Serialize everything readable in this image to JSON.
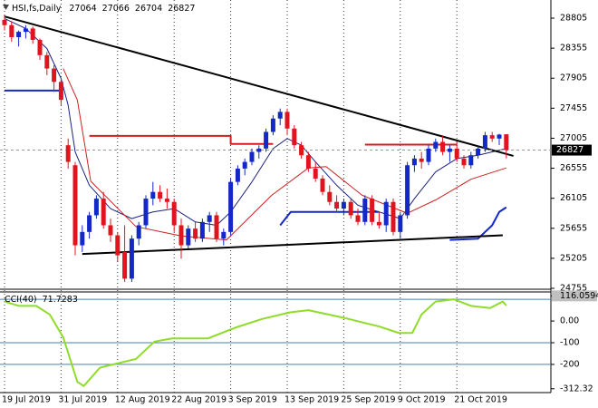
{
  "chart_data": [
    {
      "type": "candlestick",
      "title": "HSI,fs,Daily",
      "categories": [
        "19 Jul 2019",
        null,
        null,
        null,
        null,
        null,
        null,
        null,
        "31 Jul 2019",
        null,
        null,
        null,
        null,
        null,
        null,
        null,
        "12 Aug 2019",
        null,
        null,
        null,
        null,
        null,
        null,
        null,
        "22 Aug 2019",
        null,
        null,
        null,
        null,
        null,
        null,
        null,
        "3 Sep 2019",
        null,
        null,
        null,
        null,
        null,
        null,
        null,
        "13 Sep 2019",
        null,
        null,
        null,
        null,
        null,
        null,
        null,
        "25 Sep 2019",
        null,
        null,
        null,
        null,
        null,
        null,
        null,
        "9 Oct 2019",
        null,
        null,
        null,
        null,
        null,
        null,
        null,
        "21 Oct 2019",
        null,
        null,
        null,
        null,
        null,
        null,
        null
      ],
      "open": [
        28780,
        28700,
        28520,
        28600,
        28650,
        28480,
        28250,
        28050,
        27850,
        26900,
        26600,
        25400,
        25600,
        25850,
        26100,
        25700,
        25550,
        25300,
        24900,
        25500,
        25700,
        26100,
        26200,
        26100,
        26050,
        25700,
        25400,
        25650,
        25500,
        25750,
        25850,
        25500,
        25600,
        26350,
        26550,
        26650,
        26800,
        26850,
        27100,
        27300,
        27400,
        27150,
        26900,
        26750,
        26550,
        26400,
        26200,
        26050,
        25950,
        26050,
        25850,
        25750,
        26100,
        25750,
        25700,
        26050,
        25600,
        25850,
        26600,
        26700,
        26650,
        26850,
        26950,
        26800,
        26850,
        26700,
        26600,
        26750,
        26850,
        27050,
        27000,
        27064
      ],
      "high": [
        28850,
        28760,
        28620,
        28700,
        28680,
        28500,
        28300,
        28100,
        27900,
        27000,
        26650,
        25700,
        25900,
        26150,
        26200,
        25800,
        25600,
        25700,
        25550,
        25750,
        26150,
        26350,
        26300,
        26250,
        26100,
        25800,
        25700,
        25750,
        25800,
        25900,
        25900,
        25650,
        26400,
        26600,
        26700,
        26850,
        26900,
        27150,
        27350,
        27450,
        27450,
        27200,
        26950,
        26800,
        26650,
        26450,
        26300,
        26150,
        26100,
        26100,
        25950,
        26150,
        26150,
        25900,
        26100,
        26100,
        25900,
        26650,
        26750,
        26800,
        26900,
        27000,
        27050,
        26900,
        26950,
        26750,
        26800,
        26900,
        27100,
        27100,
        27070,
        27066
      ],
      "low": [
        28620,
        28450,
        28380,
        28500,
        28420,
        28180,
        27950,
        27700,
        27500,
        26550,
        25250,
        25300,
        25500,
        25800,
        25650,
        25450,
        25150,
        24850,
        24850,
        25400,
        25650,
        26000,
        26050,
        25950,
        25600,
        25200,
        25350,
        25450,
        25450,
        25600,
        25450,
        25400,
        25550,
        26300,
        26450,
        26600,
        26700,
        26800,
        27050,
        27200,
        27050,
        26850,
        26700,
        26500,
        26350,
        26150,
        26000,
        25900,
        25850,
        25800,
        25700,
        25700,
        25700,
        25650,
        25600,
        25550,
        25500,
        25800,
        26500,
        26550,
        26600,
        26800,
        26750,
        26650,
        26650,
        26550,
        26550,
        26700,
        26800,
        26950,
        26900,
        26704
      ],
      "close": [
        28700,
        28520,
        28600,
        28650,
        28480,
        28250,
        28050,
        27850,
        27580,
        26650,
        25400,
        25600,
        25850,
        26100,
        25700,
        25550,
        25250,
        24900,
        25500,
        25700,
        26100,
        26200,
        26100,
        26050,
        25700,
        25400,
        25650,
        25500,
        25750,
        25850,
        25500,
        25600,
        26350,
        26550,
        26650,
        26800,
        26850,
        27100,
        27300,
        27400,
        27150,
        26900,
        26750,
        26550,
        26400,
        26200,
        26050,
        25950,
        26050,
        25850,
        25750,
        26100,
        25750,
        25700,
        26050,
        25600,
        25850,
        26600,
        26700,
        26650,
        26850,
        26950,
        26800,
        26850,
        26700,
        26600,
        26750,
        26850,
        27050,
        27000,
        27060,
        26827
      ],
      "up_color": "#1428c8",
      "down_color": "#e0141e",
      "moving_averages": [
        {
          "color": "#1a237e",
          "x": [
            0,
            3,
            6,
            8,
            9,
            10,
            12,
            15,
            18,
            21,
            24,
            27,
            30,
            32,
            35,
            38,
            40,
            42,
            44,
            47,
            50,
            53,
            56,
            58,
            61,
            64,
            67,
            71
          ],
          "values": [
            28800,
            28650,
            28350,
            27900,
            27500,
            26800,
            26300,
            25950,
            25800,
            25900,
            25950,
            25750,
            25700,
            25900,
            26350,
            26850,
            27000,
            26900,
            26650,
            26300,
            26000,
            25900,
            25800,
            26100,
            26500,
            26700,
            26750,
            26850
          ]
        },
        {
          "color": "#d11f1f",
          "x": [
            8.3,
            10.3,
            12.2,
            18.6,
            25,
            31.4,
            37.8,
            43,
            45.5,
            50.6,
            57,
            61,
            66,
            71
          ],
          "values": [
            28050,
            27580,
            26360,
            25680,
            25540,
            25480,
            26150,
            26560,
            26580,
            26150,
            25880,
            26080,
            26390,
            26560
          ]
        }
      ],
      "level_lines": [
        {
          "color": "#d11f1f",
          "x": [
            12,
            32,
            32,
            38,
            45,
            51,
            64
          ],
          "values": [
            27040,
            27040,
            26920,
            26920,
            null,
            26910,
            26910
          ]
        },
        {
          "color": "#1428c8",
          "x": [
            0,
            8,
            8,
            39,
            40.5,
            53,
            55,
            63,
            67,
            69,
            70,
            71
          ],
          "values": [
            27720,
            27720,
            null,
            25700,
            25900,
            25900,
            null,
            25480,
            25500,
            25700,
            25900,
            25970
          ]
        }
      ],
      "trendlines": [
        {
          "color": "#000000",
          "x": [
            0,
            72
          ],
          "values": [
            28830,
            26740
          ]
        },
        {
          "color": "#000000",
          "x": [
            11,
            70.5
          ],
          "values": [
            25270,
            25550
          ]
        }
      ],
      "ylim": [
        24755,
        29050
      ],
      "yticks": [
        28805,
        28355,
        27905,
        27455,
        27005,
        26555,
        26105,
        25655,
        25205,
        24755
      ],
      "xgrid": true
    },
    {
      "type": "line",
      "title": "CCI(40)",
      "series": [
        {
          "color": "#8fdc2a",
          "x": [
            0,
            2,
            4.5,
            6.4,
            8.3,
            10.3,
            11.2,
            13.5,
            16,
            18.6,
            21.2,
            23.7,
            28.8,
            32.7,
            36.5,
            40.4,
            43,
            48,
            53,
            55.8,
            57.7,
            59,
            61,
            63.6,
            66,
            68.7,
            70.5,
            71
          ],
          "values": [
            90,
            70,
            70,
            30,
            -75,
            -280,
            -300,
            -215,
            -195,
            -175,
            -95,
            -80,
            -80,
            -30,
            10,
            40,
            50,
            15,
            -25,
            -55,
            -55,
            30,
            90,
            100,
            70,
            60,
            90,
            71.7283
          ]
        }
      ],
      "levels": [
        100,
        -100,
        -200
      ],
      "level_color": "#4682b4",
      "ylim": [
        -330,
        130
      ],
      "yticks": [
        116.0594,
        {
          "value": 0,
          "label": "0.00"
        },
        -100,
        -200,
        -312.32
      ]
    }
  ]
}
